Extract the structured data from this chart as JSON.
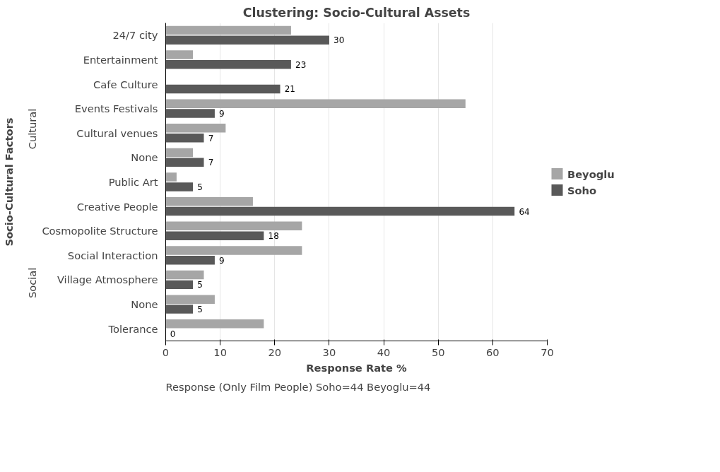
{
  "chart_data": {
    "type": "bar",
    "orientation": "horizontal",
    "title": "Clustering: Socio-Cultural Assets",
    "xlabel": "Response Rate %",
    "ylabel": "Socio-Cultural Factors",
    "categories": [
      "24/7 city",
      "Entertainment",
      "Cafe Culture",
      "Events Festivals",
      "Cultural venues",
      "None",
      "Public Art",
      "Creative People",
      "Cosmopolite Structure",
      "Social Interaction",
      "Village Atmosphere",
      "None",
      "Tolerance"
    ],
    "series": [
      {
        "name": "Beyoglu",
        "color": "#a6a6a6",
        "values": [
          23,
          5,
          0,
          55,
          11,
          5,
          2,
          16,
          25,
          25,
          7,
          9,
          18
        ]
      },
      {
        "name": "Soho",
        "color": "#595959",
        "values": [
          30,
          23,
          21,
          9,
          7,
          7,
          5,
          64,
          18,
          9,
          5,
          5,
          0
        ],
        "value_labels": [
          "30",
          "23",
          "21",
          "9",
          "7",
          "7",
          "5",
          "64",
          "18",
          "9",
          "5",
          "5",
          "0"
        ]
      }
    ],
    "xlim": [
      0,
      70
    ],
    "xticks": [
      0,
      10,
      20,
      30,
      40,
      50,
      60,
      70
    ],
    "grid": "x",
    "legend": "right",
    "annotations": [
      "Cultural",
      "Social",
      "Response (Only Film People)  Soho=44    Beyoglu=44"
    ]
  }
}
